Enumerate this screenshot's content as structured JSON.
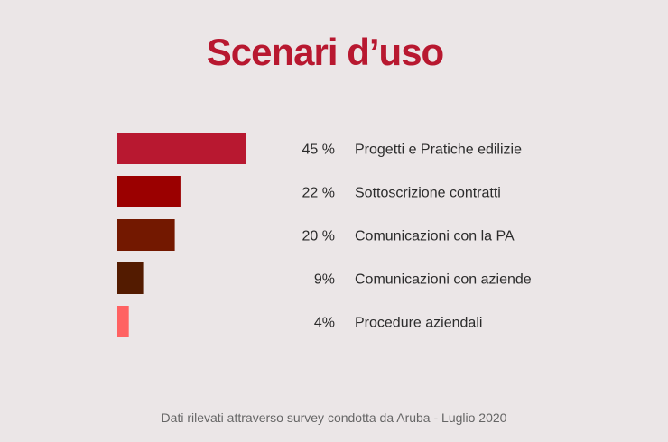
{
  "chart_data": {
    "type": "bar",
    "orientation": "horizontal",
    "title": "Scenari d’uso",
    "categories": [
      "Progetti e Pratiche edilizie",
      "Sottoscrizione contratti",
      "Comunicazioni con la PA",
      "Comunicazioni con aziende",
      "Procedure aziendali"
    ],
    "values": [
      45,
      22,
      20,
      9,
      4
    ],
    "value_labels": [
      "45 %",
      "22 %",
      "20 %",
      "9%",
      "4%"
    ],
    "colors": [
      "#b81830",
      "#9b0000",
      "#731800",
      "#531b00",
      "#ff6262"
    ],
    "xlim": [
      0,
      45
    ],
    "grid": false,
    "legend": "none"
  },
  "footnote": "Dati rilevati attraverso survey condotta da Aruba - Luglio 2020"
}
